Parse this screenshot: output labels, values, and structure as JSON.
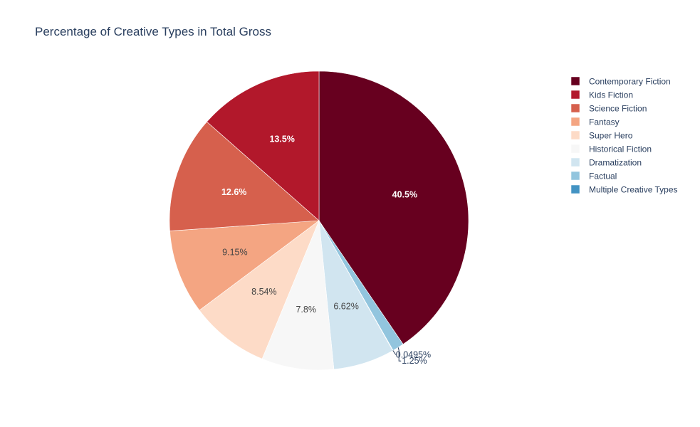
{
  "chart_data": {
    "type": "pie",
    "title": "Percentage of Creative Types in Total Gross",
    "legend_position": "top-right",
    "slices": [
      {
        "name": "Contemporary Fiction",
        "value": 40.5,
        "label": "40.5%",
        "color": "#67001f"
      },
      {
        "name": "Factual",
        "value": 1.25,
        "label": "1.25%",
        "color": "#92c5de"
      },
      {
        "name": "Multiple Creative Types",
        "value": 0.0495,
        "label": "0.0495%",
        "color": "#4393c3"
      },
      {
        "name": "Dramatization",
        "value": 6.62,
        "label": "6.62%",
        "color": "#d1e5f0"
      },
      {
        "name": "Historical Fiction",
        "value": 7.8,
        "label": "7.8%",
        "color": "#f7f7f7"
      },
      {
        "name": "Super Hero",
        "value": 8.54,
        "label": "8.54%",
        "color": "#fddbc7"
      },
      {
        "name": "Fantasy",
        "value": 9.15,
        "label": "9.15%",
        "color": "#f4a582"
      },
      {
        "name": "Science Fiction",
        "value": 12.6,
        "label": "12.6%",
        "color": "#d6604d"
      },
      {
        "name": "Kids Fiction",
        "value": 13.5,
        "label": "13.5%",
        "color": "#b2182b"
      }
    ],
    "legend": [
      {
        "name": "Contemporary Fiction",
        "color": "#67001f"
      },
      {
        "name": "Kids Fiction",
        "color": "#b2182b"
      },
      {
        "name": "Science Fiction",
        "color": "#d6604d"
      },
      {
        "name": "Fantasy",
        "color": "#f4a582"
      },
      {
        "name": "Super Hero",
        "color": "#fddbc7"
      },
      {
        "name": "Historical Fiction",
        "color": "#f7f7f7"
      },
      {
        "name": "Dramatization",
        "color": "#d1e5f0"
      },
      {
        "name": "Factual",
        "color": "#92c5de"
      },
      {
        "name": "Multiple Creative Types",
        "color": "#4393c3"
      }
    ]
  }
}
